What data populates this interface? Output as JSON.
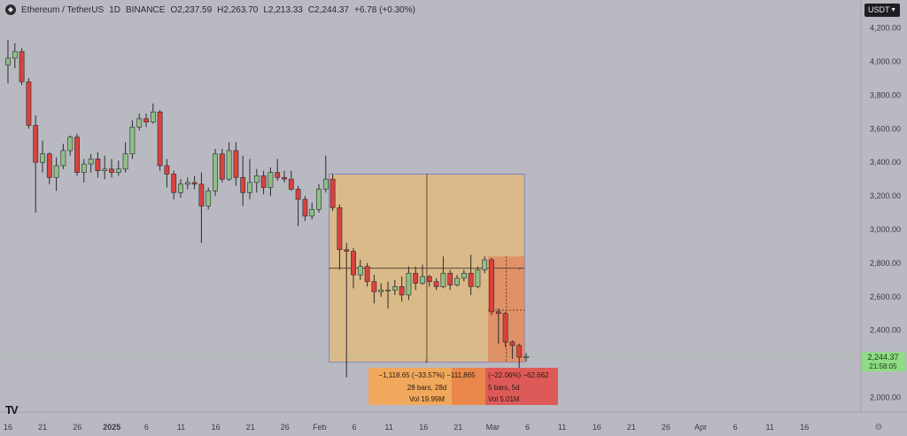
{
  "header": {
    "symbol": "Ethereum / TetherUS",
    "interval": "1D",
    "exchange": "BINANCE",
    "open": "O2,237.59",
    "high": "H2,263.70",
    "low": "L2,213.33",
    "close": "C2,244.37",
    "change": "+6.78 (+0.30%)",
    "logo_icon": "ethereum-logo-icon"
  },
  "currency_button": {
    "label": "USDT",
    "icon": "chevron-down-icon"
  },
  "price_badge": {
    "price": "2,244.37",
    "countdown": "21:58:05"
  },
  "tv_logo": "TV",
  "colors": {
    "background": "#b9b9c1",
    "up": "#8fbf86",
    "down": "#d9423f",
    "measure_fill": "#e0ba7f",
    "measure_border": "#7c84c4",
    "measure2_fill": "#e2805a",
    "info_orange": "#f0a85c",
    "info_dark_orange": "#e9884a",
    "info_red": "#dd5a58"
  },
  "chart_data": {
    "type": "candlestick",
    "y_axis": {
      "range": [
        1860,
        4270
      ],
      "ticks": [
        2000,
        2200,
        2400,
        2600,
        2800,
        3000,
        3200,
        3400,
        3600,
        3800,
        4000,
        4200
      ],
      "labels": [
        "2,000.00",
        "2,200.00",
        "2,400.00",
        "2,600.00",
        "2,800.00",
        "3,000.00",
        "3,200.00",
        "3,400.00",
        "3,600.00",
        "3,800.00",
        "4,000.00",
        "4,200.00"
      ]
    },
    "x_axis": {
      "labels": [
        "16",
        "21",
        "26",
        "2025",
        "6",
        "11",
        "16",
        "21",
        "26",
        "Feb",
        "6",
        "11",
        "16",
        "21",
        "Mar",
        "6",
        "11",
        "16",
        "21",
        "26",
        "Apr",
        "6",
        "11",
        "16"
      ]
    },
    "candles": [
      {
        "date": "2024-12-16",
        "o": 3980,
        "h": 4130,
        "l": 3870,
        "c": 4020
      },
      {
        "date": "2024-12-17",
        "o": 4020,
        "h": 4110,
        "l": 3960,
        "c": 4060
      },
      {
        "date": "2024-12-18",
        "o": 4060,
        "h": 4080,
        "l": 3860,
        "c": 3880
      },
      {
        "date": "2024-12-19",
        "o": 3880,
        "h": 3900,
        "l": 3600,
        "c": 3620
      },
      {
        "date": "2024-12-20",
        "o": 3620,
        "h": 3680,
        "l": 3100,
        "c": 3400
      },
      {
        "date": "2024-12-21",
        "o": 3400,
        "h": 3530,
        "l": 3340,
        "c": 3450
      },
      {
        "date": "2024-12-22",
        "o": 3450,
        "h": 3460,
        "l": 3270,
        "c": 3310
      },
      {
        "date": "2024-12-23",
        "o": 3310,
        "h": 3430,
        "l": 3230,
        "c": 3380
      },
      {
        "date": "2024-12-24",
        "o": 3380,
        "h": 3510,
        "l": 3360,
        "c": 3470
      },
      {
        "date": "2024-12-25",
        "o": 3470,
        "h": 3560,
        "l": 3440,
        "c": 3550
      },
      {
        "date": "2024-12-26",
        "o": 3550,
        "h": 3570,
        "l": 3320,
        "c": 3340
      },
      {
        "date": "2024-12-27",
        "o": 3340,
        "h": 3420,
        "l": 3280,
        "c": 3390
      },
      {
        "date": "2024-12-28",
        "o": 3390,
        "h": 3450,
        "l": 3340,
        "c": 3420
      },
      {
        "date": "2024-12-29",
        "o": 3420,
        "h": 3460,
        "l": 3310,
        "c": 3350
      },
      {
        "date": "2024-12-30",
        "o": 3350,
        "h": 3440,
        "l": 3300,
        "c": 3360
      },
      {
        "date": "2024-12-31",
        "o": 3360,
        "h": 3420,
        "l": 3310,
        "c": 3340
      },
      {
        "date": "2025-01-01",
        "o": 3340,
        "h": 3410,
        "l": 3320,
        "c": 3360
      },
      {
        "date": "2025-01-02",
        "o": 3360,
        "h": 3520,
        "l": 3340,
        "c": 3450
      },
      {
        "date": "2025-01-03",
        "o": 3450,
        "h": 3650,
        "l": 3420,
        "c": 3610
      },
      {
        "date": "2025-01-04",
        "o": 3610,
        "h": 3690,
        "l": 3590,
        "c": 3660
      },
      {
        "date": "2025-01-05",
        "o": 3660,
        "h": 3690,
        "l": 3610,
        "c": 3640
      },
      {
        "date": "2025-01-06",
        "o": 3640,
        "h": 3750,
        "l": 3630,
        "c": 3700
      },
      {
        "date": "2025-01-07",
        "o": 3700,
        "h": 3710,
        "l": 3350,
        "c": 3380
      },
      {
        "date": "2025-01-08",
        "o": 3380,
        "h": 3420,
        "l": 3250,
        "c": 3330
      },
      {
        "date": "2025-01-09",
        "o": 3330,
        "h": 3350,
        "l": 3180,
        "c": 3220
      },
      {
        "date": "2025-01-10",
        "o": 3220,
        "h": 3300,
        "l": 3190,
        "c": 3270
      },
      {
        "date": "2025-01-11",
        "o": 3270,
        "h": 3310,
        "l": 3240,
        "c": 3280
      },
      {
        "date": "2025-01-12",
        "o": 3280,
        "h": 3320,
        "l": 3240,
        "c": 3270
      },
      {
        "date": "2025-01-13",
        "o": 3270,
        "h": 3340,
        "l": 2920,
        "c": 3140
      },
      {
        "date": "2025-01-14",
        "o": 3140,
        "h": 3250,
        "l": 3120,
        "c": 3230
      },
      {
        "date": "2025-01-15",
        "o": 3230,
        "h": 3480,
        "l": 3200,
        "c": 3450
      },
      {
        "date": "2025-01-16",
        "o": 3450,
        "h": 3480,
        "l": 3280,
        "c": 3300
      },
      {
        "date": "2025-01-17",
        "o": 3300,
        "h": 3520,
        "l": 3290,
        "c": 3470
      },
      {
        "date": "2025-01-18",
        "o": 3470,
        "h": 3520,
        "l": 3260,
        "c": 3310
      },
      {
        "date": "2025-01-19",
        "o": 3310,
        "h": 3440,
        "l": 3140,
        "c": 3220
      },
      {
        "date": "2025-01-20",
        "o": 3220,
        "h": 3420,
        "l": 3180,
        "c": 3280
      },
      {
        "date": "2025-01-21",
        "o": 3280,
        "h": 3360,
        "l": 3220,
        "c": 3320
      },
      {
        "date": "2025-01-22",
        "o": 3320,
        "h": 3350,
        "l": 3210,
        "c": 3250
      },
      {
        "date": "2025-01-23",
        "o": 3250,
        "h": 3370,
        "l": 3200,
        "c": 3340
      },
      {
        "date": "2025-01-24",
        "o": 3340,
        "h": 3420,
        "l": 3290,
        "c": 3310
      },
      {
        "date": "2025-01-25",
        "o": 3310,
        "h": 3350,
        "l": 3280,
        "c": 3300
      },
      {
        "date": "2025-01-26",
        "o": 3300,
        "h": 3350,
        "l": 3230,
        "c": 3240
      },
      {
        "date": "2025-01-27",
        "o": 3240,
        "h": 3260,
        "l": 3020,
        "c": 3180
      },
      {
        "date": "2025-01-28",
        "o": 3180,
        "h": 3200,
        "l": 3050,
        "c": 3080
      },
      {
        "date": "2025-01-29",
        "o": 3080,
        "h": 3160,
        "l": 3060,
        "c": 3120
      },
      {
        "date": "2025-01-30",
        "o": 3120,
        "h": 3270,
        "l": 3100,
        "c": 3240
      },
      {
        "date": "2025-01-31",
        "o": 3240,
        "h": 3440,
        "l": 3220,
        "c": 3300
      },
      {
        "date": "2025-02-01",
        "o": 3300,
        "h": 3330,
        "l": 3110,
        "c": 3130
      },
      {
        "date": "2025-02-02",
        "o": 3130,
        "h": 3150,
        "l": 2760,
        "c": 2880
      },
      {
        "date": "2025-02-03",
        "o": 2880,
        "h": 2920,
        "l": 2120,
        "c": 2870
      },
      {
        "date": "2025-02-04",
        "o": 2870,
        "h": 2890,
        "l": 2650,
        "c": 2730
      },
      {
        "date": "2025-02-05",
        "o": 2730,
        "h": 2820,
        "l": 2700,
        "c": 2780
      },
      {
        "date": "2025-02-06",
        "o": 2780,
        "h": 2800,
        "l": 2660,
        "c": 2690
      },
      {
        "date": "2025-02-07",
        "o": 2690,
        "h": 2730,
        "l": 2560,
        "c": 2630
      },
      {
        "date": "2025-02-08",
        "o": 2630,
        "h": 2680,
        "l": 2600,
        "c": 2640
      },
      {
        "date": "2025-02-09",
        "o": 2640,
        "h": 2690,
        "l": 2530,
        "c": 2640
      },
      {
        "date": "2025-02-10",
        "o": 2640,
        "h": 2700,
        "l": 2610,
        "c": 2660
      },
      {
        "date": "2025-02-11",
        "o": 2660,
        "h": 2720,
        "l": 2570,
        "c": 2610
      },
      {
        "date": "2025-02-12",
        "o": 2610,
        "h": 2780,
        "l": 2580,
        "c": 2740
      },
      {
        "date": "2025-02-13",
        "o": 2740,
        "h": 2780,
        "l": 2640,
        "c": 2680
      },
      {
        "date": "2025-02-14",
        "o": 2680,
        "h": 2790,
        "l": 2670,
        "c": 2720
      },
      {
        "date": "2025-02-15",
        "o": 2720,
        "h": 2730,
        "l": 2660,
        "c": 2690
      },
      {
        "date": "2025-02-16",
        "o": 2690,
        "h": 2710,
        "l": 2640,
        "c": 2660
      },
      {
        "date": "2025-02-17",
        "o": 2660,
        "h": 2840,
        "l": 2650,
        "c": 2740
      },
      {
        "date": "2025-02-18",
        "o": 2740,
        "h": 2760,
        "l": 2640,
        "c": 2670
      },
      {
        "date": "2025-02-19",
        "o": 2670,
        "h": 2730,
        "l": 2660,
        "c": 2710
      },
      {
        "date": "2025-02-20",
        "o": 2710,
        "h": 2760,
        "l": 2690,
        "c": 2740
      },
      {
        "date": "2025-02-21",
        "o": 2740,
        "h": 2850,
        "l": 2610,
        "c": 2660
      },
      {
        "date": "2025-02-22",
        "o": 2660,
        "h": 2780,
        "l": 2650,
        "c": 2760
      },
      {
        "date": "2025-02-23",
        "o": 2760,
        "h": 2840,
        "l": 2740,
        "c": 2820
      },
      {
        "date": "2025-02-24",
        "o": 2820,
        "h": 2830,
        "l": 2490,
        "c": 2510
      },
      {
        "date": "2025-02-25",
        "o": 2510,
        "h": 2530,
        "l": 2320,
        "c": 2500
      },
      {
        "date": "2025-02-26",
        "o": 2500,
        "h": 2510,
        "l": 2300,
        "c": 2330
      },
      {
        "date": "2025-02-27",
        "o": 2330,
        "h": 2340,
        "l": 2230,
        "c": 2310
      },
      {
        "date": "2025-02-28",
        "o": 2310,
        "h": 2320,
        "l": 2130,
        "c": 2240
      },
      {
        "date": "2025-03-01",
        "o": 2237.59,
        "h": 2263.7,
        "l": 2213.33,
        "c": 2244.37
      }
    ],
    "measure_1": {
      "from_date": "2025-02-01",
      "to_date": "2025-02-28",
      "price_top": 3330,
      "price_bottom": 2210,
      "mid_price": 2770,
      "labels": [
        "−1,118.65 (−33.57%) −111,865",
        "28 bars, 28d",
        "Vol 19.99M"
      ]
    },
    "measure_2": {
      "from_date": "2025-02-24",
      "to_date": "2025-02-28",
      "price_top": 2840,
      "price_bottom": 2210,
      "mid_price": 2520,
      "labels": [
        "(−22.06%) −62,662",
        "5 bars, 5d",
        "Vol 5.01M"
      ]
    },
    "price_line": 2244.37
  }
}
